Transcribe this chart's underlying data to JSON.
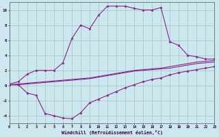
{
  "background_color": "#cce8ee",
  "grid_color": "#99bbbb",
  "line_color": "#882288",
  "xlabel": "Windchill (Refroidissement éolien,°C)",
  "xlim_min": 0,
  "xlim_max": 23,
  "ylim_min": -5,
  "ylim_max": 11,
  "xticks": [
    0,
    1,
    2,
    3,
    4,
    5,
    6,
    7,
    8,
    9,
    10,
    11,
    12,
    13,
    14,
    15,
    16,
    17,
    18,
    19,
    20,
    21,
    22,
    23
  ],
  "yticks": [
    -4,
    -2,
    0,
    2,
    4,
    6,
    8,
    10
  ],
  "hours": [
    0,
    1,
    2,
    3,
    4,
    5,
    6,
    7,
    8,
    9,
    10,
    11,
    12,
    13,
    14,
    15,
    16,
    17,
    18,
    19,
    20,
    21,
    22,
    23
  ],
  "s1_y": [
    0.2,
    0.5,
    1.5,
    2.0,
    2.0,
    2.0,
    3.0,
    6.2,
    8.0,
    7.5,
    9.3,
    10.5,
    10.5,
    10.5,
    10.2,
    10.0,
    10.0,
    10.3,
    5.8,
    5.3,
    4.0,
    3.8,
    3.5,
    3.5
  ],
  "s2_y": [
    0.1,
    0.2,
    0.3,
    0.4,
    0.5,
    0.6,
    0.7,
    0.8,
    0.9,
    1.0,
    1.2,
    1.4,
    1.6,
    1.8,
    2.0,
    2.1,
    2.2,
    2.3,
    2.5,
    2.7,
    2.9,
    3.1,
    3.2,
    3.3
  ],
  "s3_y": [
    0.1,
    0.1,
    0.2,
    0.3,
    0.4,
    0.5,
    0.6,
    0.7,
    0.8,
    0.9,
    1.1,
    1.3,
    1.5,
    1.7,
    1.9,
    2.0,
    2.1,
    2.2,
    2.3,
    2.5,
    2.7,
    2.9,
    3.0,
    3.1
  ],
  "s4_y": [
    0.1,
    0.1,
    -1.0,
    -1.3,
    -3.7,
    -4.0,
    -4.3,
    -4.4,
    -3.6,
    -2.3,
    -1.8,
    -1.3,
    -0.8,
    -0.3,
    0.1,
    0.5,
    0.8,
    1.0,
    1.4,
    1.7,
    1.9,
    2.1,
    2.3,
    2.5
  ]
}
